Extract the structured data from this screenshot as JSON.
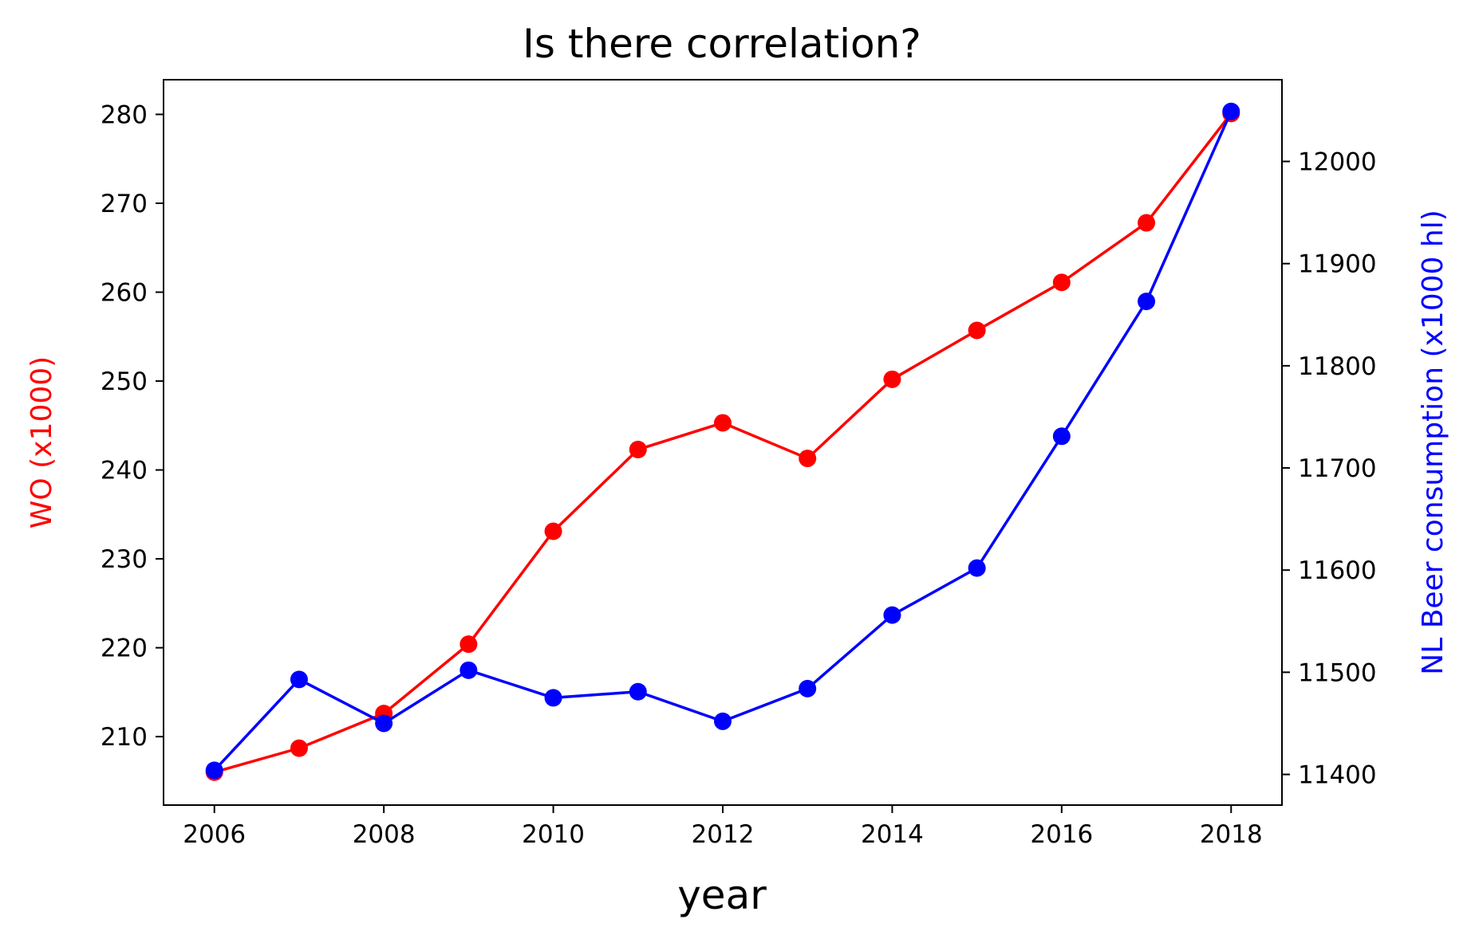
{
  "chart_data": {
    "type": "line",
    "title": "Is there correlation?",
    "xlabel": "year",
    "x": [
      2006,
      2007,
      2008,
      2009,
      2010,
      2011,
      2012,
      2013,
      2014,
      2015,
      2016,
      2017,
      2018
    ],
    "xlim": [
      2005.4,
      2018.6
    ],
    "xticks": [
      2006,
      2008,
      2010,
      2012,
      2014,
      2016,
      2018
    ],
    "y_left": {
      "label": "WO (x1000)",
      "color": "#ff0000",
      "lim": [
        202.3,
        283.9
      ],
      "ticks": [
        210,
        220,
        230,
        240,
        250,
        260,
        270,
        280
      ],
      "values": [
        206,
        208.7,
        212.6,
        220.4,
        233.1,
        242.3,
        245.3,
        241.3,
        250.2,
        255.7,
        261.1,
        267.8,
        280.1
      ]
    },
    "y_right": {
      "label": "NL Beer consumption (x1000 hl)",
      "color": "#0000ff",
      "lim": [
        11370,
        12080
      ],
      "ticks": [
        11400,
        11500,
        11600,
        11700,
        11800,
        11900,
        12000
      ],
      "values": [
        11404,
        11493,
        11450,
        11502,
        11475,
        11481,
        11452,
        11484,
        11556,
        11602,
        11731,
        11863,
        12049
      ]
    },
    "grid": false,
    "legend": "none"
  }
}
